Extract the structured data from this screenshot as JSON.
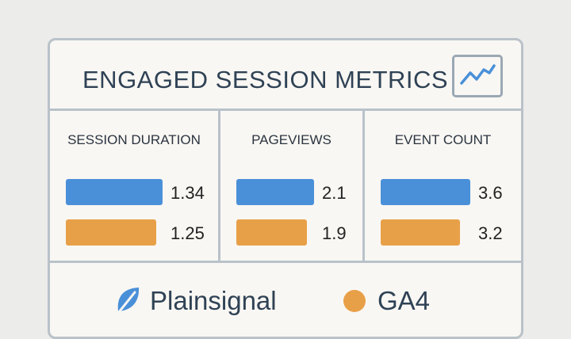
{
  "title": "ENGAGED SESSION METRICS",
  "colors": {
    "plainsignal": "#4a90d9",
    "ga4": "#e8a048"
  },
  "header_icon": "line-chart-icon",
  "chart_data": {
    "type": "bar",
    "categories": [
      "SESSION DURATION",
      "PAGEVIEWS",
      "EVENT COUNT"
    ],
    "series": [
      {
        "name": "Plainsignal",
        "values": [
          1.34,
          2.1,
          3.6
        ]
      },
      {
        "name": "GA4",
        "values": [
          1.25,
          1.9,
          3.2
        ]
      }
    ],
    "value_labels": [
      [
        "1.34",
        "1.25"
      ],
      [
        "2.1",
        "1.9"
      ],
      [
        "3.6",
        "3.2"
      ]
    ]
  },
  "legend": {
    "item1": "Plainsignal",
    "item1_icon": "leaf-icon",
    "item2": "GA4"
  }
}
